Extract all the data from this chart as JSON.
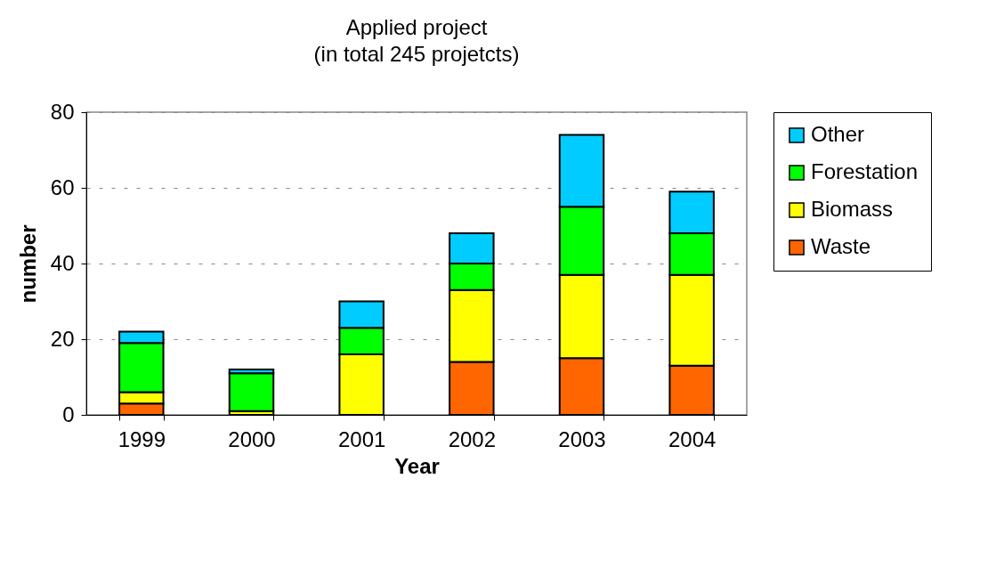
{
  "chart_data": {
    "type": "bar",
    "title": "Applied project",
    "subtitle": "(in total 245 projetcts)",
    "xlabel": "Year",
    "ylabel": "number",
    "categories": [
      "1999",
      "2000",
      "2001",
      "2002",
      "2003",
      "2004"
    ],
    "stacked": true,
    "ylim": [
      0,
      80
    ],
    "yticks": [
      0,
      20,
      40,
      60,
      80
    ],
    "grid": "y",
    "legend": "right",
    "series": [
      {
        "name": "Waste",
        "color": "#ff6600",
        "values": [
          3,
          0,
          0,
          14,
          15,
          13
        ]
      },
      {
        "name": "Biomass",
        "color": "#ffff00",
        "values": [
          3,
          1,
          16,
          19,
          22,
          24
        ]
      },
      {
        "name": "Forestation",
        "color": "#00ff00",
        "values": [
          13,
          10,
          7,
          7,
          18,
          11
        ]
      },
      {
        "name": "Other",
        "color": "#00ccff",
        "values": [
          3,
          1,
          7,
          8,
          19,
          11
        ]
      }
    ]
  }
}
